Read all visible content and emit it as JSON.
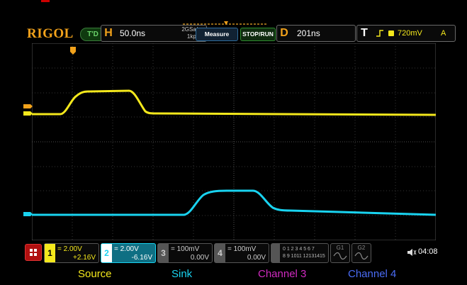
{
  "brand": {
    "logo": "RIGOL",
    "mode_badge": "T'D"
  },
  "horizontal": {
    "letter": "H",
    "timebase": "50.0ns",
    "sample_rate": "2GSa/s",
    "memory_depth": "1kpts"
  },
  "buttons": {
    "measure": "Measure",
    "stop_run": "STOP/RUN"
  },
  "delay": {
    "letter": "D",
    "value": "201ns"
  },
  "trigger": {
    "letter": "T",
    "level": "720mV",
    "source": "A"
  },
  "channels": [
    {
      "num": "1",
      "scale": "2.00V",
      "offset": "+2.16V",
      "color": "#f4e81c",
      "active": false
    },
    {
      "num": "2",
      "scale": "2.00V",
      "offset": "-6.16V",
      "color": "#19d3f0",
      "active": true
    },
    {
      "num": "3",
      "scale": "100mV",
      "offset": "0.00V",
      "color": "#777777",
      "active": false
    },
    {
      "num": "4",
      "scale": "100mV",
      "offset": "0.00V",
      "color": "#777777",
      "active": false
    }
  ],
  "digital": {
    "row1": "0 1 2 3  4 5 6 7",
    "row2": "8 9 1011 12131415"
  },
  "generators": [
    {
      "label": "G1"
    },
    {
      "label": "G2"
    }
  ],
  "status": {
    "time": "04:08",
    "speaker_icon": "speaker-icon"
  },
  "legend": [
    {
      "label": "Source",
      "color": "#f4e81c"
    },
    {
      "label": "Sink",
      "color": "#19d3f0"
    },
    {
      "label": "Channel 3",
      "color": "#d02ac0"
    },
    {
      "label": "Channel 4",
      "color": "#4a6cf5"
    }
  ]
}
